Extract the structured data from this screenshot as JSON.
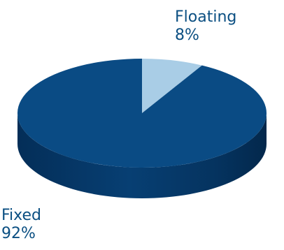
{
  "chart_data": {
    "type": "pie",
    "style": "3d",
    "slices": [
      {
        "name": "Floating",
        "value": 8,
        "value_label": "8%",
        "color": "#a9cde6"
      },
      {
        "name": "Fixed",
        "value": 92,
        "value_label": "92%",
        "color": "#0a4b84"
      }
    ],
    "label_color": "#0b4f82"
  }
}
